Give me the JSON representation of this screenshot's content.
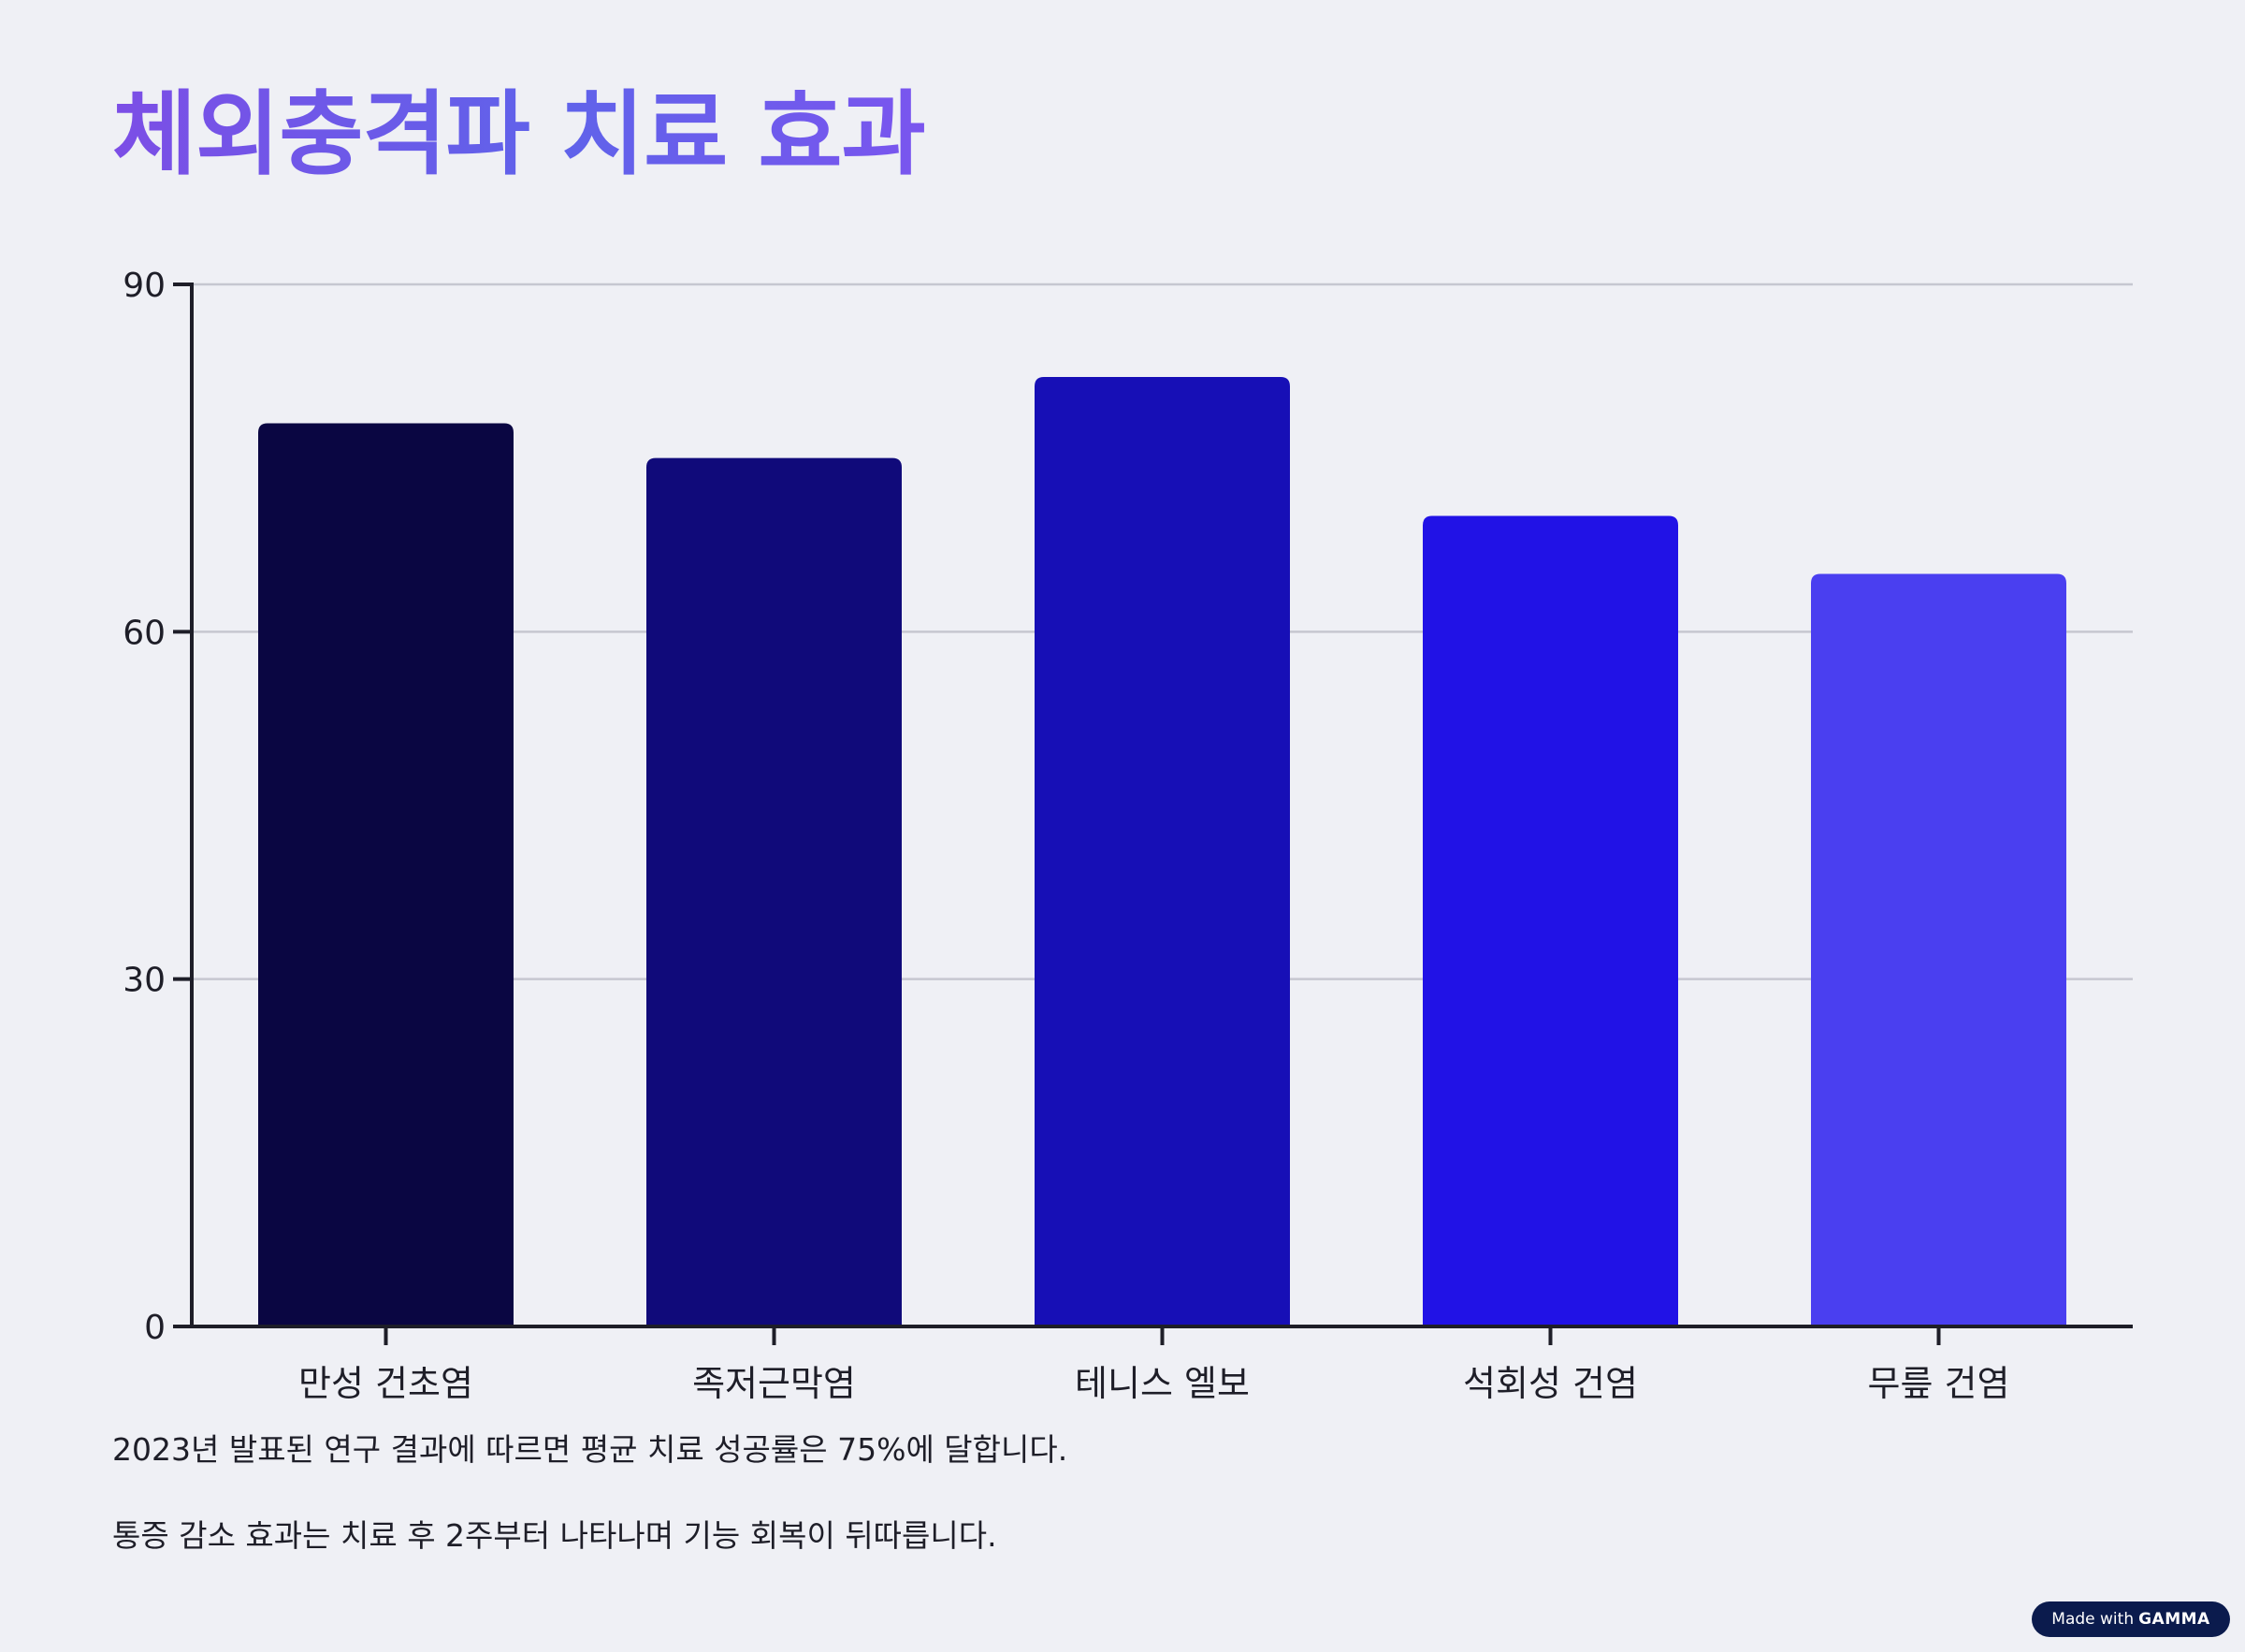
{
  "title": "체외충격파 치료 효과",
  "chart_data": {
    "type": "bar",
    "categories": [
      "만성 건초염",
      "족저근막염",
      "테니스 엘보",
      "석회성 건염",
      "무릎 건염"
    ],
    "values": [
      78,
      75,
      82,
      70,
      65
    ],
    "bar_colors": [
      "#0a0642",
      "#100a7a",
      "#170fb6",
      "#2112e6",
      "#4a3ff0"
    ],
    "title": "",
    "xlabel": "",
    "ylabel": "",
    "ylim": [
      0,
      90
    ],
    "yticks": [
      0,
      30,
      60,
      90
    ],
    "grid": true,
    "legend": "none"
  },
  "notes": [
    "2023년 발표된 연구 결과에 따르면 평균 치료 성공률은 75%에 달합니다.",
    "통증 감소 효과는 치료 후 2주부터 나타나며 기능 회복이 뒤따릅니다."
  ],
  "badge": {
    "made_with": "Made with",
    "brand": "GAMMA"
  }
}
